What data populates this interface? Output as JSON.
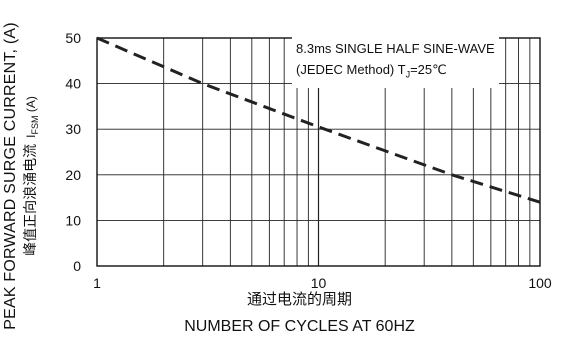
{
  "chart_data": {
    "type": "line",
    "title": "",
    "xlabel_cn": "通过电流的周期",
    "xlabel": "NUMBER OF CYCLES AT 60HZ",
    "ylabel": "PEAK FORWARD SURGE CURRENT, (A)",
    "ylabel_cn": "峰值正向浪涌电流",
    "ylabel_symbol": "I",
    "ylabel_symbol_sub": "FSM",
    "ylabel_symbol_unit": " (A)",
    "x_scale": "log",
    "xlim": [
      1,
      100
    ],
    "ylim": [
      0,
      50
    ],
    "x_ticks": [
      1,
      10,
      100
    ],
    "x_tick_labels": [
      "1",
      "10",
      "100"
    ],
    "y_ticks": [
      0,
      10,
      20,
      30,
      40,
      50
    ],
    "y_tick_labels": [
      "0",
      "10",
      "20",
      "30",
      "40",
      "50"
    ],
    "grid": true,
    "series": [
      {
        "x": [
          1,
          3,
          10,
          40,
          100
        ],
        "values": [
          50,
          40,
          30.5,
          20,
          14
        ],
        "line_style": "dashed",
        "color": "#222222"
      }
    ],
    "annotation": {
      "line1": "8.3ms SINGLE HALF SINE-WAVE",
      "line2_text": "(JEDEC Method)  T",
      "line2_sub": "J",
      "line2_tail": "=25℃"
    }
  }
}
